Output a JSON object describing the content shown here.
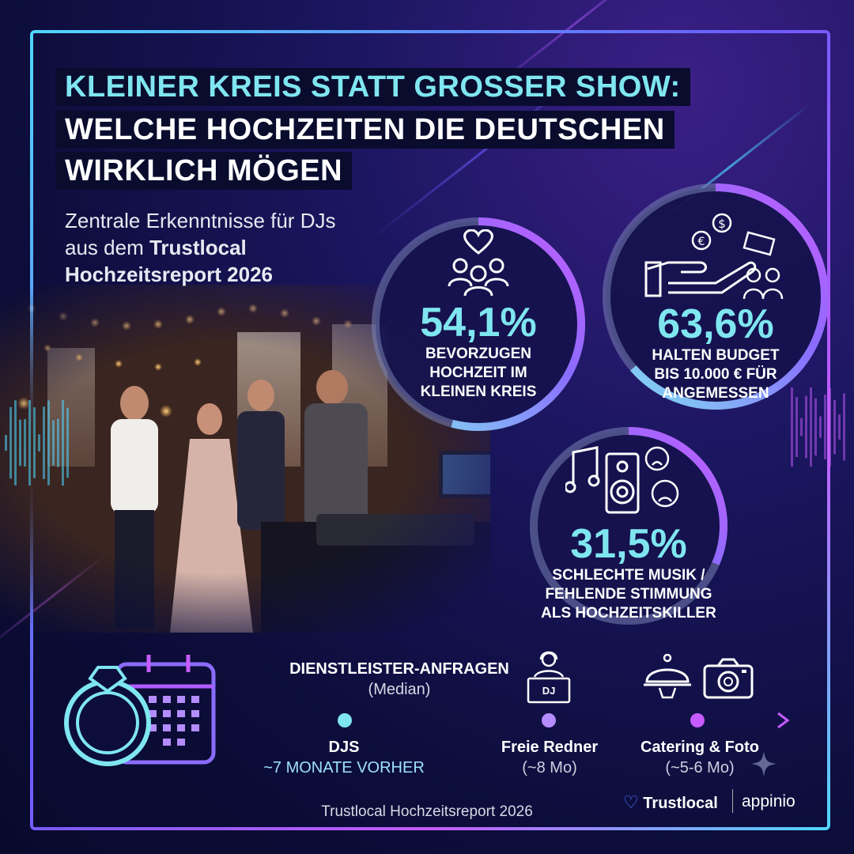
{
  "title": {
    "line1": "KLEINER KREIS STATT GROSSER SHOW:",
    "line2": "WELCHE HOCHZEITEN DIE DEUTSCHEN",
    "line3": "WIRKLICH MÖGEN"
  },
  "subtitle": {
    "line1": "Zentrale Erkenntnisse für DJs",
    "line2_prefix": "aus dem ",
    "line2_bold": "Trustlocal",
    "line3_bold": "Hochzeitsreport 2026"
  },
  "stats": [
    {
      "value": "54,1%",
      "label": "BEVORZUGEN\nHOCHZEIT IM\nKLEINEN KREIS",
      "icon": "heart-people-icon",
      "progress": 0.541
    },
    {
      "value": "63,6%",
      "label": "HALTEN BUDGET\nBIS 10.000 € FÜR\nANGEMESSEN",
      "icon": "hand-money-couple-icon",
      "progress": 0.636
    },
    {
      "value": "31,5%",
      "label": "SCHLECHTE MUSIK /\nFEHLENDE STIMMUNG\nALS HOCHZEITSKILLER",
      "icon": "music-speaker-sad-icon",
      "progress": 0.315
    }
  ],
  "timeline": {
    "title": "DIENSTLEISTER-ANFRAGEN",
    "subtitle": "(Median)",
    "dj_badge": "DJ",
    "points": [
      {
        "name": "DJS",
        "detail": "~7 MONATE VORHER"
      },
      {
        "name": "Freie Redner",
        "detail": "(~8 Mo)"
      },
      {
        "name": "Catering & Foto",
        "detail": "(~5-6 Mo)"
      }
    ]
  },
  "footer": {
    "source": "Trustlocal Hochzeitsreport 2026",
    "brand1": "Trustlocal",
    "brand2": "appinio"
  },
  "colors": {
    "accent_cyan": "#7fe6f0",
    "accent_purple": "#c65cff",
    "background": "#0c0d3a"
  }
}
